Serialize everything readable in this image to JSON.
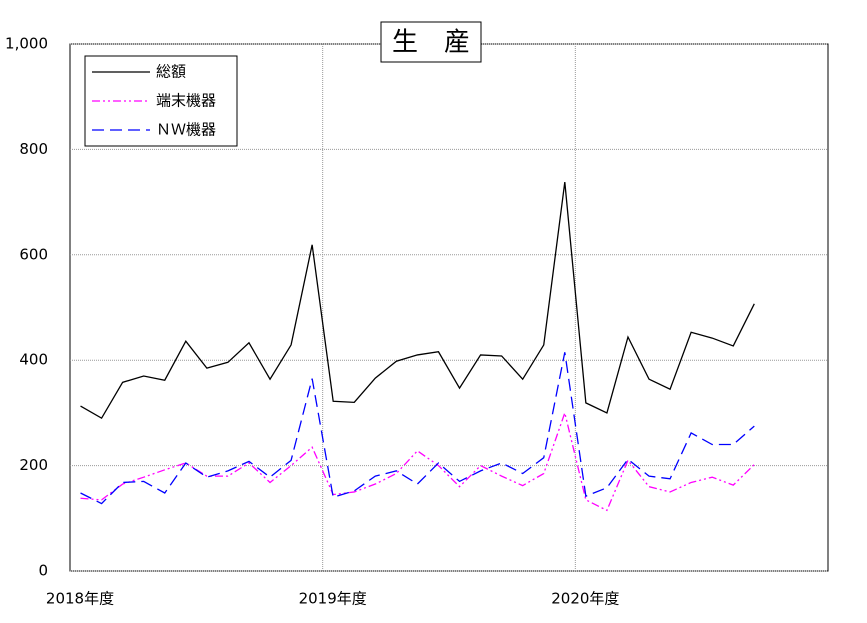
{
  "chart_data": {
    "type": "line",
    "title": "生　産",
    "categories": [
      "2018年度",
      null,
      null,
      null,
      null,
      null,
      null,
      null,
      null,
      null,
      null,
      null,
      "2019年度",
      null,
      null,
      null,
      null,
      null,
      null,
      null,
      null,
      null,
      null,
      null,
      "2020年度",
      null,
      null,
      null,
      null,
      null,
      null,
      null,
      null,
      null,
      null,
      null
    ],
    "series": [
      {
        "name": "総額",
        "color": "#000000",
        "dash": "none",
        "values": [
          313,
          290,
          358,
          370,
          362,
          436,
          385,
          396,
          433,
          364,
          429,
          619,
          322,
          320,
          366,
          398,
          410,
          416,
          347,
          410,
          408,
          364,
          429,
          738,
          319,
          300,
          444,
          364,
          345,
          453,
          442,
          427,
          507,
          null,
          null,
          null
        ]
      },
      {
        "name": "端末機器",
        "color": "#ff00ff",
        "dash": "8 3 2 3 2 3",
        "values": [
          138,
          135,
          165,
          178,
          192,
          205,
          180,
          180,
          205,
          168,
          200,
          235,
          145,
          150,
          165,
          185,
          228,
          200,
          160,
          200,
          180,
          162,
          185,
          300,
          135,
          115,
          210,
          160,
          150,
          168,
          178,
          163,
          202,
          null,
          null,
          null
        ]
      },
      {
        "name": "ＮＷ機器",
        "color": "#0000ff",
        "dash": "12 6",
        "values": [
          148,
          128,
          168,
          170,
          148,
          205,
          178,
          190,
          208,
          178,
          210,
          365,
          140,
          152,
          180,
          190,
          165,
          205,
          170,
          190,
          205,
          185,
          215,
          415,
          142,
          158,
          212,
          180,
          175,
          262,
          240,
          240,
          275,
          null,
          null,
          null
        ]
      }
    ],
    "ylim": [
      0,
      1000
    ],
    "yticks": [
      0,
      200,
      400,
      600,
      800,
      {
        "value": 1000,
        "label": "1,000"
      }
    ],
    "grid": true,
    "legend": "top-left"
  }
}
